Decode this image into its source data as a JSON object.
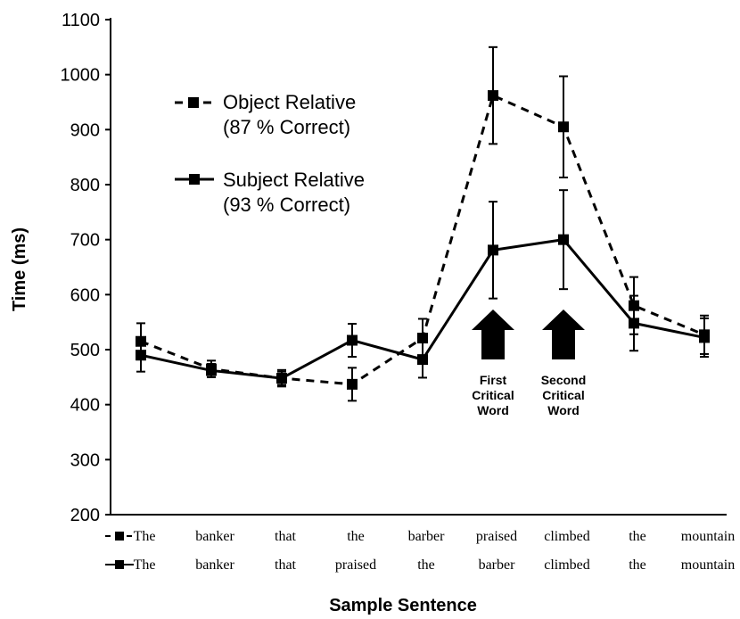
{
  "chart_data": {
    "type": "line",
    "ylabel": "Time (ms)",
    "xlabel": "Sample Sentence",
    "ylim": [
      200,
      1100
    ],
    "yticks": [
      200,
      300,
      400,
      500,
      600,
      700,
      800,
      900,
      1000,
      1100
    ],
    "x": [
      1,
      2,
      3,
      4,
      5,
      6,
      7,
      8,
      9
    ],
    "series": [
      {
        "name": "Object Relative",
        "legend_line1": "Object Relative",
        "legend_line2": "(87 % Correct)",
        "style": "dashed",
        "color": "#000000",
        "values": [
          515,
          465,
          448,
          437,
          521,
          962,
          905,
          580,
          527
        ],
        "error": [
          33,
          15,
          15,
          30,
          35,
          88,
          92,
          52,
          35
        ],
        "words": [
          "The",
          "banker",
          "that",
          "the",
          "barber",
          "praised",
          "climbed",
          "the",
          "mountain"
        ]
      },
      {
        "name": "Subject Relative",
        "legend_line1": "Subject Relative",
        "legend_line2": "(93 % Correct)",
        "style": "solid",
        "color": "#000000",
        "values": [
          490,
          462,
          448,
          517,
          482,
          681,
          700,
          548,
          522
        ],
        "error": [
          30,
          12,
          12,
          30,
          33,
          88,
          90,
          50,
          35
        ],
        "words": [
          "The",
          "banker",
          "that",
          "praised",
          "the",
          "barber",
          "climbed",
          "the",
          "mountain"
        ]
      }
    ],
    "annotations": [
      {
        "x": 6,
        "line1": "First",
        "line2": "Critical",
        "line3": "Word"
      },
      {
        "x": 7,
        "line1": "Second",
        "line2": "Critical",
        "line3": "Word"
      }
    ],
    "grid": false,
    "legend": "top-left"
  }
}
